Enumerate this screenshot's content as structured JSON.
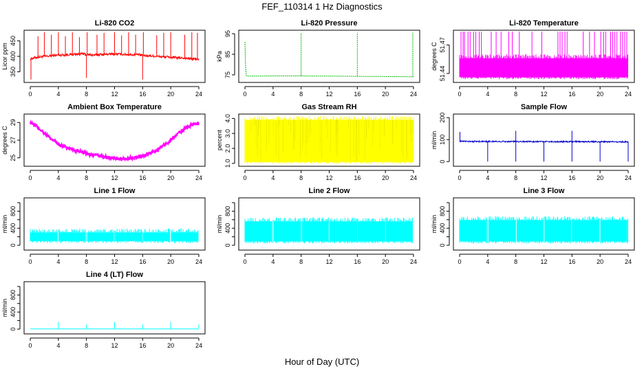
{
  "figure": {
    "title": "FEF_110314  1 Hz Diagnostics",
    "xlabel": "Hour of Day (UTC)"
  },
  "chart_data": [
    {
      "type": "line",
      "title": "Li-820 CO2",
      "ylabel": "Licor ppm",
      "color": "#ff0000",
      "xlim": [
        0,
        24
      ],
      "ylim": [
        320,
        480
      ],
      "yticks": [
        350,
        400,
        450
      ],
      "yticklabels": [
        "350",
        "400",
        "450"
      ],
      "xticks": [
        0,
        4,
        8,
        12,
        16,
        20,
        24
      ],
      "x": [
        0,
        0.5,
        1,
        1.5,
        2,
        2.5,
        3,
        3.5,
        4,
        4.5,
        5,
        5.5,
        6,
        6.5,
        7,
        7.5,
        8,
        8.5,
        9,
        9.5,
        10,
        10.5,
        11,
        11.5,
        12,
        12.5,
        13,
        13.5,
        14,
        14.5,
        15,
        15.5,
        16,
        16.5,
        17,
        17.5,
        18,
        18.5,
        19,
        19.5,
        20,
        20.5,
        21,
        21.5,
        22,
        22.5,
        23,
        23.5,
        24
      ],
      "y": [
        392,
        395,
        397,
        398,
        400,
        400,
        402,
        403,
        404,
        404,
        405,
        406,
        406,
        407,
        407,
        408,
        405,
        405,
        404,
        405,
        406,
        406,
        407,
        407,
        408,
        407,
        407,
        406,
        406,
        405,
        406,
        405,
        403,
        402,
        402,
        401,
        400,
        399,
        398,
        398,
        397,
        396,
        395,
        395,
        394,
        393,
        392,
        391,
        390
      ],
      "spikes": [
        {
          "x": 0.1,
          "y": 325
        },
        {
          "x": 1.1,
          "y": 465
        },
        {
          "x": 2,
          "y": 478
        },
        {
          "x": 3,
          "y": 470
        },
        {
          "x": 4,
          "y": 478
        },
        {
          "x": 5,
          "y": 465
        },
        {
          "x": 6,
          "y": 478
        },
        {
          "x": 7,
          "y": 462
        },
        {
          "x": 8,
          "y": 330
        },
        {
          "x": 8.1,
          "y": 478
        },
        {
          "x": 9.5,
          "y": 470
        },
        {
          "x": 10.5,
          "y": 476
        },
        {
          "x": 12,
          "y": 478
        },
        {
          "x": 13,
          "y": 468
        },
        {
          "x": 14,
          "y": 478
        },
        {
          "x": 15,
          "y": 470
        },
        {
          "x": 16,
          "y": 325
        },
        {
          "x": 16.1,
          "y": 478
        },
        {
          "x": 18,
          "y": 468
        },
        {
          "x": 19,
          "y": 476
        },
        {
          "x": 20,
          "y": 478
        },
        {
          "x": 22,
          "y": 470
        },
        {
          "x": 23,
          "y": 478
        },
        {
          "x": 23.8,
          "y": 476
        }
      ]
    },
    {
      "type": "line",
      "title": "Li-820 Pressure",
      "ylabel": "kPa",
      "color": "#00bb00",
      "xlim": [
        0,
        24
      ],
      "ylim": [
        72,
        96
      ],
      "yticks": [
        75,
        85,
        95
      ],
      "yticklabels": [
        "75",
        "85",
        "95"
      ],
      "xticks": [
        0,
        4,
        8,
        12,
        16,
        20,
        24
      ],
      "x": [
        0,
        0.1,
        0.2,
        0.3,
        1,
        4,
        8,
        12,
        16,
        20,
        23.8,
        24
      ],
      "y": [
        91,
        78,
        74.6,
        74.4,
        74.4,
        74.5,
        74.5,
        74.4,
        74.3,
        74.2,
        74.1,
        74.1
      ],
      "spikes": [
        {
          "x": 8,
          "y": 95.5
        },
        {
          "x": 16,
          "y": 95.5
        },
        {
          "x": 23.9,
          "y": 95.5
        }
      ]
    },
    {
      "type": "area",
      "title": "Li-820 Temperature",
      "ylabel": "degrees C",
      "color": "#ff00ff",
      "xlim": [
        0,
        24
      ],
      "ylim": [
        51.432,
        51.484
      ],
      "yticks": [
        51.44,
        51.47
      ],
      "yticklabels": [
        "51.44",
        "51.47"
      ],
      "xticks": [
        0,
        4,
        8,
        12,
        16,
        20,
        24
      ],
      "band": [
        51.436,
        51.456
      ],
      "spikes_top": 51.484,
      "spikes": [
        0.2,
        0.5,
        0.7,
        1.2,
        1.5,
        2.0,
        2.3,
        2.8,
        3.1,
        4.5,
        5.2,
        5.9,
        7.0,
        7.5,
        8.5,
        10.3,
        11.7,
        14.0,
        14.3,
        14.6,
        15.0,
        15.3,
        17.6,
        18.5,
        19.2,
        20.1,
        20.5,
        20.8,
        21.5,
        21.8,
        22.1,
        22.4,
        22.9,
        23.2,
        23.5,
        23.8
      ]
    },
    {
      "type": "line",
      "title": "Ambient Box Temperature",
      "ylabel": "degrees C",
      "color": "#ff00ff",
      "xlim": [
        0,
        24
      ],
      "ylim": [
        24.2,
        29.8
      ],
      "yticks": [
        25,
        27,
        29
      ],
      "yticklabels": [
        "25",
        "27",
        "29"
      ],
      "xticks": [
        0,
        4,
        8,
        12,
        16,
        20,
        24
      ],
      "x": [
        0,
        1,
        2,
        3,
        4,
        5,
        6,
        7,
        8,
        9,
        10,
        11,
        12,
        13,
        14,
        15,
        16,
        17,
        18,
        19,
        20,
        21,
        22,
        23,
        24
      ],
      "y": [
        29.0,
        28.5,
        27.8,
        27.1,
        26.6,
        26.2,
        25.9,
        25.7,
        25.5,
        25.3,
        25.2,
        25.05,
        24.95,
        24.9,
        24.95,
        25.05,
        25.2,
        25.5,
        25.9,
        26.4,
        27.0,
        27.7,
        28.3,
        28.8,
        28.9
      ],
      "noise": 0.35
    },
    {
      "type": "area",
      "title": "Gas Stream RH",
      "ylabel": "percent",
      "color": "#ffff00",
      "xlim": [
        0,
        24
      ],
      "ylim": [
        0.9,
        4.2
      ],
      "yticks": [
        1.0,
        2.0,
        3.0,
        4.0
      ],
      "yticklabels": [
        "1.0",
        "2.0",
        "3.0",
        "4.0"
      ],
      "xticks": [
        0,
        4,
        8,
        12,
        16,
        20,
        24
      ],
      "band": [
        1.1,
        3.9
      ]
    },
    {
      "type": "line",
      "title": "Sample Flow",
      "ylabel": "ml/min",
      "color": "#0000cc",
      "xlim": [
        0,
        24
      ],
      "ylim": [
        -15,
        210
      ],
      "yticks": [
        0,
        100,
        200
      ],
      "yticklabels": [
        "0",
        "100",
        "200"
      ],
      "xticks": [
        0,
        4,
        8,
        12,
        16,
        20,
        24
      ],
      "x": [
        0,
        24
      ],
      "y": [
        92,
        90
      ],
      "spikes_up": [
        {
          "x": 0.05,
          "y": 135
        },
        {
          "x": 8,
          "y": 140
        },
        {
          "x": 16,
          "y": 140
        }
      ],
      "spikes_down": [
        {
          "x": 4,
          "y": 0
        },
        {
          "x": 8,
          "y": 0
        },
        {
          "x": 12,
          "y": 0
        },
        {
          "x": 16,
          "y": 0
        },
        {
          "x": 20,
          "y": 0
        },
        {
          "x": 24,
          "y": 0
        }
      ]
    },
    {
      "type": "area",
      "title": "Line 1 Flow",
      "ylabel": "ml/min",
      "color": "#00ffff",
      "xlim": [
        0,
        24
      ],
      "ylim": [
        -80,
        1080
      ],
      "yticks": [
        0,
        200,
        400,
        600,
        800,
        1000
      ],
      "yticklabels": [
        "0",
        "400",
        "800"
      ],
      "xticks": [
        0,
        4,
        8,
        12,
        16,
        20,
        24
      ],
      "band": [
        100,
        300
      ],
      "gaps": [
        4,
        8,
        12,
        16,
        20,
        24
      ]
    },
    {
      "type": "area",
      "title": "Line 2 Flow",
      "ylabel": "ml/min",
      "color": "#00ffff",
      "xlim": [
        0,
        24
      ],
      "ylim": [
        -80,
        1080
      ],
      "yticks": [
        0,
        200,
        400,
        600,
        800,
        1000
      ],
      "yticklabels": [
        "0",
        "400",
        "800"
      ],
      "xticks": [
        0,
        4,
        8,
        12,
        16,
        20,
        24
      ],
      "band": [
        90,
        560
      ],
      "gaps": [
        4,
        8,
        12,
        16,
        20,
        24
      ]
    },
    {
      "type": "area",
      "title": "Line 3 Flow",
      "ylabel": "ml/min",
      "color": "#00ffff",
      "xlim": [
        0,
        24
      ],
      "ylim": [
        -80,
        1080
      ],
      "yticks": [
        0,
        200,
        400,
        600,
        800,
        1000
      ],
      "yticklabels": [
        "0",
        "400",
        "800"
      ],
      "xticks": [
        0,
        4,
        8,
        12,
        16,
        20,
        24
      ],
      "band": [
        90,
        590
      ],
      "gaps": [
        4,
        8,
        12,
        16,
        20,
        24
      ]
    },
    {
      "type": "line",
      "title": "Line 4 (LT) Flow",
      "ylabel": "ml/min",
      "color": "#00ffff",
      "xlim": [
        0,
        24
      ],
      "ylim": [
        -80,
        1080
      ],
      "yticks": [
        0,
        200,
        400,
        600,
        800,
        1000
      ],
      "yticklabels": [
        "0",
        "400",
        "800"
      ],
      "xticks": [
        0,
        4,
        8,
        12,
        16,
        20,
        24
      ],
      "x": [
        0,
        24
      ],
      "y": [
        5,
        5
      ],
      "spikes": [
        {
          "x": 4,
          "y": 170
        },
        {
          "x": 8,
          "y": 110
        },
        {
          "x": 12,
          "y": 170
        },
        {
          "x": 16,
          "y": 110
        },
        {
          "x": 20,
          "y": 170
        },
        {
          "x": 24,
          "y": 110
        }
      ]
    }
  ]
}
